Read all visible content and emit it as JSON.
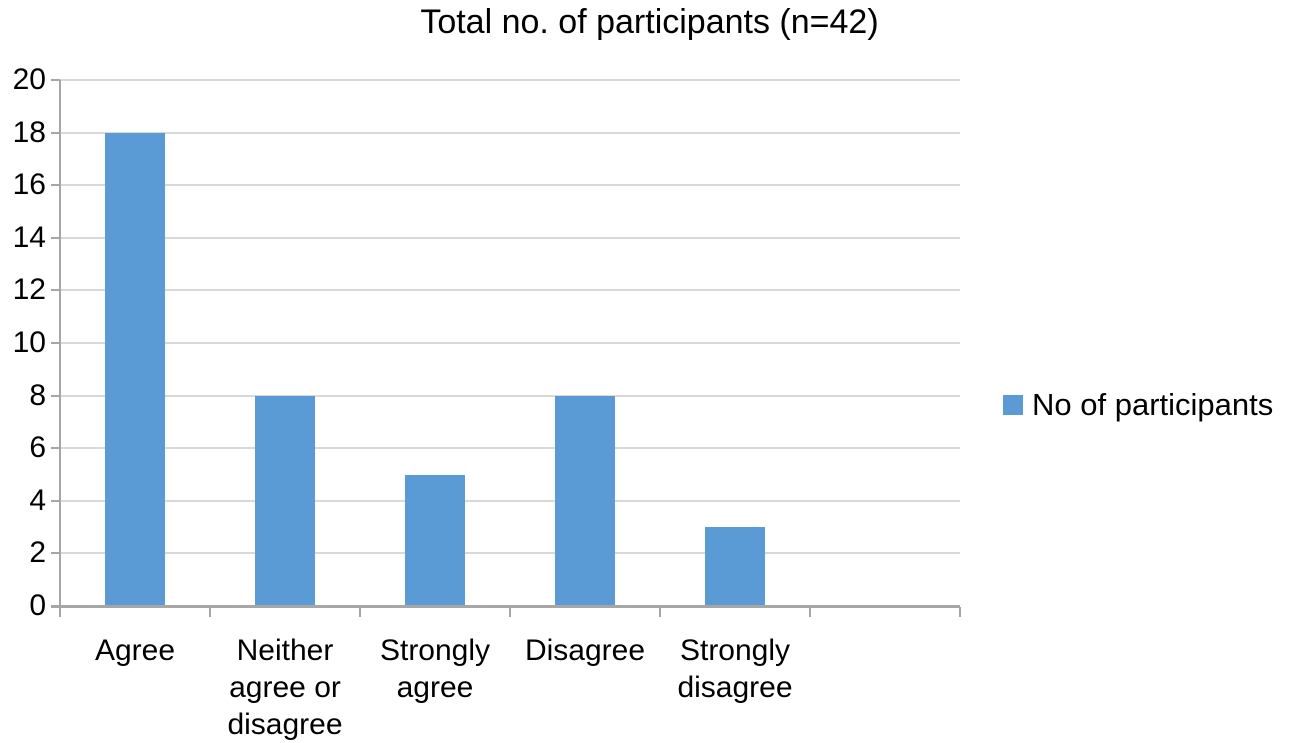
{
  "chart_data": {
    "type": "bar",
    "title": "Total no. of participants (n=42)",
    "categories": [
      "Agree",
      "Neither agree or disagree",
      "Strongly agree",
      "Disagree",
      "Strongly disagree"
    ],
    "series": [
      {
        "name": "No of participants",
        "values": [
          18,
          8,
          5,
          8,
          3
        ]
      }
    ],
    "total_n": 42,
    "xlabel": "",
    "ylabel": "",
    "ylim": [
      0,
      20
    ],
    "ytick_step": 2,
    "ytick_labels": [
      "0",
      "2",
      "4",
      "6",
      "8",
      "10",
      "12",
      "14",
      "16",
      "18",
      "20"
    ],
    "grid": true,
    "legend": {
      "label": "No of participants",
      "position": "right"
    },
    "layout_hints": {
      "category_slots": 6,
      "sixth_slot_empty": true,
      "legend_swatch": "square"
    },
    "colors": {
      "bar": "#5b9bd5",
      "gridline": "#d9d9d9",
      "axis": "#a6a6a6",
      "text": "#000000",
      "background": "#ffffff"
    }
  }
}
